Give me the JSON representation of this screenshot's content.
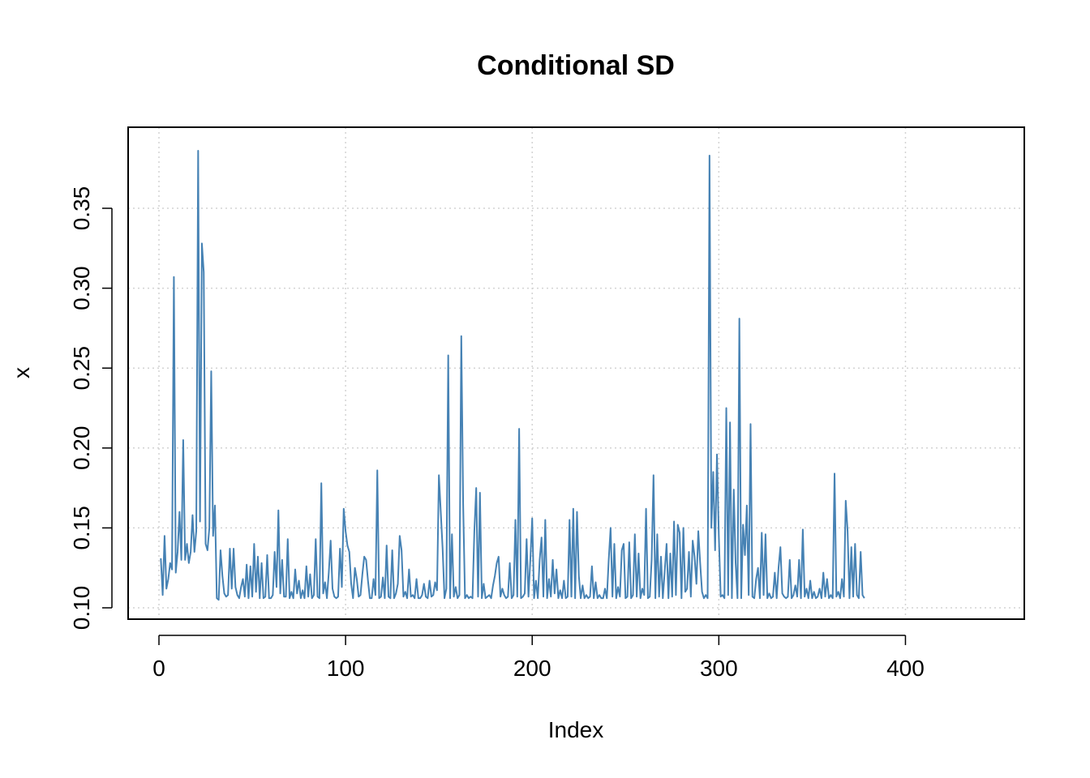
{
  "chart_data": {
    "type": "line",
    "title": "Conditional SD",
    "xlabel": "Index",
    "ylabel": "x",
    "xlim": [
      0,
      445
    ],
    "ylim": [
      0.1,
      0.385
    ],
    "x_ticks": [
      0,
      100,
      200,
      300,
      400
    ],
    "y_ticks": [
      0.1,
      0.15,
      0.2,
      0.25,
      0.3,
      0.35
    ],
    "x_tick_labels": [
      "0",
      "100",
      "200",
      "300",
      "400"
    ],
    "y_tick_labels": [
      "0.10",
      "0.15",
      "0.20",
      "0.25",
      "0.30",
      "0.35"
    ],
    "grid": true,
    "line_color": "#4682B4",
    "series": [
      {
        "x_start": 1,
        "values": [
          0.131,
          0.108,
          0.145,
          0.112,
          0.118,
          0.128,
          0.124,
          0.307,
          0.122,
          0.135,
          0.16,
          0.13,
          0.205,
          0.13,
          0.14,
          0.128,
          0.135,
          0.158,
          0.135,
          0.148,
          0.386,
          0.154,
          0.328,
          0.31,
          0.14,
          0.136,
          0.15,
          0.248,
          0.145,
          0.164,
          0.106,
          0.105,
          0.136,
          0.12,
          0.109,
          0.107,
          0.108,
          0.137,
          0.112,
          0.137,
          0.113,
          0.108,
          0.106,
          0.113,
          0.118,
          0.107,
          0.127,
          0.106,
          0.126,
          0.107,
          0.14,
          0.11,
          0.132,
          0.106,
          0.128,
          0.106,
          0.107,
          0.133,
          0.106,
          0.106,
          0.108,
          0.135,
          0.113,
          0.161,
          0.109,
          0.13,
          0.107,
          0.107,
          0.143,
          0.106,
          0.11,
          0.106,
          0.124,
          0.109,
          0.117,
          0.106,
          0.111,
          0.106,
          0.126,
          0.107,
          0.121,
          0.106,
          0.108,
          0.143,
          0.107,
          0.106,
          0.178,
          0.109,
          0.116,
          0.106,
          0.122,
          0.142,
          0.112,
          0.107,
          0.106,
          0.107,
          0.137,
          0.113,
          0.162,
          0.148,
          0.139,
          0.135,
          0.115,
          0.106,
          0.125,
          0.118,
          0.107,
          0.108,
          0.121,
          0.132,
          0.13,
          0.117,
          0.106,
          0.106,
          0.118,
          0.108,
          0.186,
          0.106,
          0.107,
          0.119,
          0.106,
          0.139,
          0.107,
          0.106,
          0.136,
          0.106,
          0.109,
          0.115,
          0.145,
          0.136,
          0.107,
          0.11,
          0.106,
          0.124,
          0.107,
          0.108,
          0.106,
          0.118,
          0.106,
          0.106,
          0.108,
          0.115,
          0.107,
          0.106,
          0.117,
          0.107,
          0.108,
          0.116,
          0.111,
          0.183,
          0.16,
          0.137,
          0.106,
          0.112,
          0.258,
          0.106,
          0.146,
          0.107,
          0.113,
          0.106,
          0.108,
          0.27,
          0.165,
          0.106,
          0.108,
          0.106,
          0.107,
          0.106,
          0.148,
          0.175,
          0.107,
          0.172,
          0.106,
          0.115,
          0.106,
          0.107,
          0.108,
          0.106,
          0.114,
          0.12,
          0.128,
          0.132,
          0.107,
          0.112,
          0.108,
          0.106,
          0.107,
          0.128,
          0.106,
          0.108,
          0.155,
          0.107,
          0.212,
          0.106,
          0.107,
          0.109,
          0.143,
          0.107,
          0.13,
          0.156,
          0.106,
          0.117,
          0.106,
          0.13,
          0.144,
          0.107,
          0.155,
          0.106,
          0.118,
          0.107,
          0.13,
          0.109,
          0.124,
          0.106,
          0.111,
          0.106,
          0.117,
          0.106,
          0.107,
          0.155,
          0.107,
          0.162,
          0.106,
          0.16,
          0.12,
          0.106,
          0.114,
          0.106,
          0.108,
          0.106,
          0.107,
          0.126,
          0.106,
          0.116,
          0.106,
          0.108,
          0.106,
          0.106,
          0.112,
          0.106,
          0.13,
          0.15,
          0.107,
          0.14,
          0.106,
          0.113,
          0.107,
          0.136,
          0.14,
          0.106,
          0.107,
          0.141,
          0.106,
          0.108,
          0.146,
          0.107,
          0.134,
          0.106,
          0.112,
          0.108,
          0.162,
          0.106,
          0.107,
          0.13,
          0.183,
          0.106,
          0.146,
          0.107,
          0.132,
          0.106,
          0.123,
          0.14,
          0.106,
          0.134,
          0.107,
          0.154,
          0.108,
          0.152,
          0.147,
          0.106,
          0.15,
          0.11,
          0.112,
          0.135,
          0.107,
          0.142,
          0.132,
          0.115,
          0.148,
          0.128,
          0.11,
          0.106,
          0.108,
          0.106,
          0.383,
          0.15,
          0.185,
          0.136,
          0.196,
          0.145,
          0.107,
          0.108,
          0.106,
          0.225,
          0.108,
          0.216,
          0.106,
          0.174,
          0.128,
          0.106,
          0.281,
          0.106,
          0.152,
          0.133,
          0.164,
          0.108,
          0.215,
          0.107,
          0.106,
          0.118,
          0.125,
          0.106,
          0.147,
          0.108,
          0.146,
          0.106,
          0.109,
          0.106,
          0.107,
          0.122,
          0.106,
          0.125,
          0.138,
          0.109,
          0.107,
          0.106,
          0.107,
          0.13,
          0.106,
          0.108,
          0.114,
          0.107,
          0.13,
          0.106,
          0.149,
          0.107,
          0.112,
          0.106,
          0.117,
          0.106,
          0.11,
          0.106,
          0.107,
          0.112,
          0.106,
          0.122,
          0.107,
          0.118,
          0.106,
          0.108,
          0.106,
          0.184,
          0.107,
          0.11,
          0.106,
          0.118,
          0.107,
          0.167,
          0.148,
          0.106,
          0.138,
          0.107,
          0.14,
          0.108,
          0.106,
          0.135,
          0.108,
          0.106
        ]
      }
    ]
  }
}
